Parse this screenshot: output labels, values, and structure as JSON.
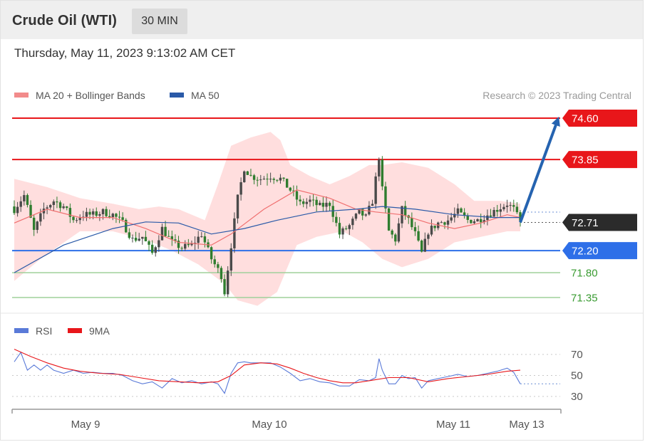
{
  "header": {
    "instrument": "Crude Oil (WTI)",
    "timeframe_button": "30 MIN"
  },
  "timestamp": "Thursday, May 11, 2023 9:13:02 AM CET",
  "credit": "Research © 2023 Trading Central",
  "colors": {
    "resistance": "#e8161a",
    "support": "#2e6fe8",
    "pivot": "#2b2b2b",
    "target": "#3a9b32",
    "ma50": "#2a5aa8",
    "bands": "#ffd8d8",
    "ma20": "#f07070",
    "up_candle": "#4a4a4a",
    "down_candle": "#2f7d2f",
    "rsi": "#5a7ad8",
    "rsi_ma": "#e8161a",
    "arrow": "#2563b0"
  },
  "chart_data": [
    {
      "type": "candlestick",
      "price_range": [
        71.1,
        74.8
      ],
      "legend": [
        {
          "name": "MA 20 + Bollinger Bands",
          "color": "#f28b8b"
        },
        {
          "name": "MA 50",
          "color": "#2a5aa8"
        }
      ],
      "legend_position": "top-left",
      "x_labels": [
        "May 9",
        "May 10",
        "May 11",
        "May 13"
      ],
      "levels": [
        {
          "value": "74.60",
          "kind": "resistance",
          "labeled_box": true
        },
        {
          "value": "73.85",
          "kind": "resistance",
          "labeled_box": true
        },
        {
          "value": "72.71",
          "kind": "last",
          "labeled_box": true
        },
        {
          "value": "72.20",
          "kind": "support",
          "labeled_box": true
        },
        {
          "value": "71.80",
          "kind": "target",
          "labeled_box": false
        },
        {
          "value": "71.35",
          "kind": "target",
          "labeled_box": false
        }
      ],
      "forecast_arrow": {
        "from": 72.71,
        "to": 74.55
      },
      "close_path": [
        [
          0,
          72.95
        ],
        [
          3,
          73.2
        ],
        [
          6,
          72.55
        ],
        [
          9,
          72.95
        ],
        [
          12,
          73.1
        ],
        [
          15,
          73.0
        ],
        [
          18,
          72.75
        ],
        [
          21,
          72.85
        ],
        [
          24,
          72.85
        ],
        [
          27,
          72.9
        ],
        [
          30,
          72.85
        ],
        [
          33,
          72.7
        ],
        [
          36,
          72.4
        ],
        [
          39,
          72.45
        ],
        [
          42,
          72.15
        ],
        [
          45,
          72.6
        ],
        [
          48,
          72.35
        ],
        [
          51,
          72.25
        ],
        [
          54,
          72.3
        ],
        [
          57,
          72.5
        ],
        [
          60,
          72.05
        ],
        [
          63,
          71.75
        ],
        [
          64,
          71.45
        ],
        [
          66,
          72.3
        ],
        [
          68,
          73.15
        ],
        [
          70,
          73.7
        ],
        [
          72,
          73.55
        ],
        [
          75,
          73.5
        ],
        [
          78,
          73.55
        ],
        [
          81,
          73.5
        ],
        [
          84,
          73.3
        ],
        [
          87,
          73.05
        ],
        [
          90,
          73.1
        ],
        [
          93,
          73.0
        ],
        [
          96,
          73.05
        ],
        [
          99,
          72.5
        ],
        [
          102,
          72.65
        ],
        [
          105,
          72.9
        ],
        [
          107,
          72.8
        ],
        [
          109,
          73.1
        ],
        [
          111,
          73.9
        ],
        [
          112,
          73.3
        ],
        [
          114,
          72.55
        ],
        [
          116,
          72.4
        ],
        [
          118,
          72.95
        ],
        [
          120,
          72.75
        ],
        [
          122,
          72.5
        ],
        [
          124,
          72.15
        ],
        [
          126,
          72.55
        ],
        [
          129,
          72.7
        ],
        [
          132,
          72.75
        ],
        [
          135,
          72.9
        ],
        [
          138,
          72.75
        ],
        [
          141,
          72.75
        ],
        [
          144,
          72.85
        ],
        [
          147,
          72.95
        ],
        [
          150,
          73.05
        ],
        [
          152,
          72.95
        ],
        [
          154,
          72.71
        ]
      ],
      "ma20_path": [
        [
          0,
          72.7
        ],
        [
          10,
          72.95
        ],
        [
          20,
          72.8
        ],
        [
          30,
          72.8
        ],
        [
          40,
          72.6
        ],
        [
          50,
          72.35
        ],
        [
          60,
          72.3
        ],
        [
          66,
          72.5
        ],
        [
          76,
          72.95
        ],
        [
          86,
          73.3
        ],
        [
          96,
          73.15
        ],
        [
          104,
          72.95
        ],
        [
          110,
          72.9
        ],
        [
          118,
          72.85
        ],
        [
          126,
          72.7
        ],
        [
          134,
          72.6
        ],
        [
          142,
          72.7
        ],
        [
          150,
          72.85
        ],
        [
          154,
          72.8
        ]
      ],
      "ma50_path": [
        [
          0,
          71.8
        ],
        [
          15,
          72.3
        ],
        [
          30,
          72.6
        ],
        [
          40,
          72.72
        ],
        [
          50,
          72.7
        ],
        [
          60,
          72.5
        ],
        [
          70,
          72.6
        ],
        [
          80,
          72.75
        ],
        [
          92,
          72.9
        ],
        [
          104,
          72.95
        ],
        [
          112,
          73.0
        ],
        [
          122,
          72.95
        ],
        [
          134,
          72.85
        ],
        [
          146,
          72.8
        ],
        [
          154,
          72.8
        ]
      ],
      "band_upper_path": [
        [
          0,
          73.5
        ],
        [
          10,
          73.35
        ],
        [
          20,
          73.15
        ],
        [
          30,
          73.05
        ],
        [
          38,
          72.95
        ],
        [
          44,
          73.0
        ],
        [
          50,
          72.95
        ],
        [
          58,
          72.75
        ],
        [
          62,
          73.4
        ],
        [
          66,
          74.1
        ],
        [
          72,
          74.25
        ],
        [
          78,
          74.35
        ],
        [
          81,
          74.2
        ],
        [
          84,
          73.75
        ],
        [
          90,
          73.55
        ],
        [
          96,
          73.4
        ],
        [
          102,
          73.55
        ],
        [
          108,
          73.75
        ],
        [
          112,
          73.75
        ],
        [
          118,
          73.8
        ],
        [
          126,
          73.7
        ],
        [
          134,
          73.4
        ],
        [
          140,
          73.1
        ],
        [
          148,
          73.1
        ],
        [
          154,
          73.05
        ]
      ],
      "band_lower_path": [
        [
          0,
          71.65
        ],
        [
          8,
          72.05
        ],
        [
          14,
          72.3
        ],
        [
          20,
          72.55
        ],
        [
          30,
          72.55
        ],
        [
          40,
          72.4
        ],
        [
          48,
          72.2
        ],
        [
          56,
          71.95
        ],
        [
          64,
          71.6
        ],
        [
          68,
          71.3
        ],
        [
          74,
          71.2
        ],
        [
          80,
          71.45
        ],
        [
          86,
          72.3
        ],
        [
          92,
          72.45
        ],
        [
          100,
          72.55
        ],
        [
          106,
          72.35
        ],
        [
          112,
          72.05
        ],
        [
          118,
          71.9
        ],
        [
          126,
          72.05
        ],
        [
          134,
          72.35
        ],
        [
          142,
          72.45
        ],
        [
          150,
          72.55
        ],
        [
          154,
          72.55
        ]
      ]
    },
    {
      "type": "line",
      "y_ticks": [
        "70",
        "50",
        "30"
      ],
      "ylim": [
        20,
        80
      ],
      "legend": [
        {
          "name": "RSI",
          "color": "#5a7ad8"
        },
        {
          "name": "9MA",
          "color": "#e8161a"
        }
      ],
      "legend_position": "top-left",
      "rsi_path": [
        [
          0,
          63
        ],
        [
          2,
          72
        ],
        [
          4,
          55
        ],
        [
          6,
          60
        ],
        [
          8,
          55
        ],
        [
          10,
          60
        ],
        [
          12,
          55
        ],
        [
          15,
          52
        ],
        [
          18,
          55
        ],
        [
          21,
          52
        ],
        [
          24,
          53
        ],
        [
          27,
          52
        ],
        [
          30,
          52
        ],
        [
          33,
          50
        ],
        [
          36,
          45
        ],
        [
          39,
          42
        ],
        [
          42,
          44
        ],
        [
          45,
          38
        ],
        [
          48,
          47
        ],
        [
          51,
          43
        ],
        [
          54,
          45
        ],
        [
          57,
          42
        ],
        [
          60,
          44
        ],
        [
          62,
          42
        ],
        [
          64,
          33
        ],
        [
          66,
          52
        ],
        [
          68,
          62
        ],
        [
          70,
          63
        ],
        [
          72,
          62
        ],
        [
          75,
          62
        ],
        [
          78,
          62
        ],
        [
          81,
          58
        ],
        [
          84,
          52
        ],
        [
          87,
          45
        ],
        [
          90,
          47
        ],
        [
          93,
          44
        ],
        [
          96,
          43
        ],
        [
          99,
          40
        ],
        [
          102,
          40
        ],
        [
          105,
          46
        ],
        [
          108,
          45
        ],
        [
          110,
          48
        ],
        [
          111,
          66
        ],
        [
          112,
          55
        ],
        [
          114,
          42
        ],
        [
          116,
          42
        ],
        [
          118,
          50
        ],
        [
          120,
          47
        ],
        [
          122,
          48
        ],
        [
          124,
          38
        ],
        [
          126,
          45
        ],
        [
          129,
          47
        ],
        [
          132,
          49
        ],
        [
          135,
          51
        ],
        [
          138,
          49
        ],
        [
          141,
          50
        ],
        [
          144,
          52
        ],
        [
          147,
          54
        ],
        [
          150,
          57
        ],
        [
          152,
          53
        ],
        [
          154,
          42
        ]
      ],
      "rsi_ma_path": [
        [
          0,
          75
        ],
        [
          5,
          68
        ],
        [
          10,
          62
        ],
        [
          15,
          57
        ],
        [
          20,
          54
        ],
        [
          26,
          52
        ],
        [
          32,
          51
        ],
        [
          38,
          48
        ],
        [
          44,
          45
        ],
        [
          50,
          44
        ],
        [
          56,
          43
        ],
        [
          62,
          44
        ],
        [
          66,
          50
        ],
        [
          70,
          60
        ],
        [
          75,
          62
        ],
        [
          80,
          61
        ],
        [
          84,
          57
        ],
        [
          88,
          52
        ],
        [
          92,
          48
        ],
        [
          96,
          45
        ],
        [
          100,
          43
        ],
        [
          104,
          43
        ],
        [
          108,
          45
        ],
        [
          110,
          46
        ],
        [
          114,
          48
        ],
        [
          120,
          48
        ],
        [
          126,
          44
        ],
        [
          132,
          47
        ],
        [
          138,
          49
        ],
        [
          144,
          51
        ],
        [
          150,
          54
        ],
        [
          154,
          55
        ]
      ]
    }
  ]
}
